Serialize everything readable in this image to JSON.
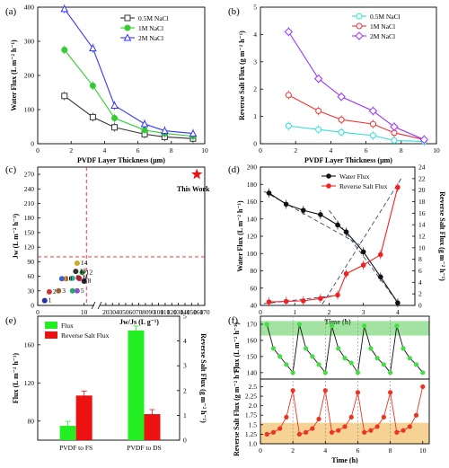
{
  "chart_data": [
    {
      "panel": "(a)",
      "type": "line",
      "xlabel": "PVDF Layer Thickness (μm)",
      "ylabel": "Water Flux (L m⁻² h⁻¹)",
      "xlim": [
        0,
        10
      ],
      "ylim": [
        0,
        400
      ],
      "xticks": [
        "0",
        "2",
        "4",
        "6",
        "8",
        "10"
      ],
      "yticks": [
        "0",
        "100",
        "200",
        "300",
        "400"
      ],
      "legend_position": "top-right",
      "series": [
        {
          "name": "0.5M NaCl",
          "color": "#333333",
          "marker": "square",
          "x": [
            1.6,
            3.3,
            4.6,
            6.4,
            7.6,
            9.3
          ],
          "y": [
            140,
            78,
            48,
            28,
            20,
            15
          ]
        },
        {
          "name": "1M NaCl",
          "color": "#33cc33",
          "marker": "circle",
          "x": [
            1.6,
            3.3,
            4.6,
            6.4,
            7.6,
            9.3
          ],
          "y": [
            275,
            170,
            75,
            40,
            30,
            22
          ]
        },
        {
          "name": "2M NaCl",
          "color": "#3333ff",
          "marker": "triangle",
          "x": [
            1.6,
            3.3,
            4.6,
            6.4,
            7.6,
            9.3
          ],
          "y": [
            395,
            280,
            112,
            58,
            38,
            30
          ]
        }
      ]
    },
    {
      "panel": "(b)",
      "type": "line",
      "xlabel": "PVDF Layer Thickness (μm)",
      "ylabel": "Reverse Salt Flux (g m⁻² h⁻¹)",
      "xlim": [
        0,
        10
      ],
      "ylim": [
        0,
        5
      ],
      "xticks": [
        "0",
        "2",
        "4",
        "6",
        "8",
        "10"
      ],
      "yticks": [
        "0",
        "1",
        "2",
        "3",
        "4",
        "5"
      ],
      "legend_position": "top-right",
      "series": [
        {
          "name": "0.5M NaCl",
          "color": "#33dddd",
          "marker": "circle",
          "x": [
            1.6,
            3.3,
            4.6,
            6.4,
            7.6,
            9.3
          ],
          "y": [
            0.65,
            0.52,
            0.42,
            0.3,
            0.12,
            0.08
          ]
        },
        {
          "name": "1M NaCl",
          "color": "#ee3333",
          "marker": "circle",
          "x": [
            1.6,
            3.3,
            4.6,
            6.4,
            7.6,
            9.3
          ],
          "y": [
            1.78,
            1.2,
            0.88,
            0.72,
            0.4,
            0.15
          ]
        },
        {
          "name": "2M NaCl",
          "color": "#9933ff",
          "marker": "diamond",
          "x": [
            1.6,
            3.3,
            4.6,
            6.4,
            7.6,
            9.3
          ],
          "y": [
            4.1,
            2.38,
            1.72,
            1.2,
            0.62,
            0.15
          ]
        }
      ]
    },
    {
      "panel": "(c)",
      "type": "scatter",
      "xlabel": "Jw/Js (L g⁻¹)",
      "ylabel": "Jw (L m⁻² h⁻¹)",
      "xlim": [
        0,
        170
      ],
      "ylim": [
        0,
        285
      ],
      "xticks": [
        "0",
        "10",
        "20",
        "30",
        "40",
        "50",
        "60",
        "70",
        "80",
        "90",
        "100",
        "110",
        "120",
        "130",
        "140",
        "150",
        "160",
        "170"
      ],
      "yticks": [
        "0",
        "30",
        "60",
        "90",
        "120",
        "150",
        "180",
        "210",
        "240",
        "270"
      ],
      "axis_break": true,
      "reference_lines": {
        "x": 10.5,
        "y": 100
      },
      "points": [
        {
          "label": "1",
          "x": 1.5,
          "y": 10,
          "color": "#2233aa"
        },
        {
          "label": "2",
          "x": 2.5,
          "y": 28,
          "color": "#cc3333"
        },
        {
          "label": "3",
          "x": 4.5,
          "y": 30,
          "color": "#996633"
        },
        {
          "label": "4",
          "x": 7.5,
          "y": 30,
          "color": "#22aa66"
        },
        {
          "label": "5",
          "x": 8.5,
          "y": 30,
          "color": "#8855cc"
        },
        {
          "label": "6",
          "x": 6,
          "y": 55,
          "color": "#ee8833"
        },
        {
          "label": "7",
          "x": 7.5,
          "y": 56,
          "color": "#33aa99"
        },
        {
          "label": "8",
          "x": 10,
          "y": 50,
          "color": "#222222"
        },
        {
          "label": "9",
          "x": 9,
          "y": 55,
          "color": "#cc33aa"
        },
        {
          "label": "10",
          "x": 5.2,
          "y": 55,
          "color": "#3366cc"
        },
        {
          "label": "11",
          "x": 8.8,
          "y": 57,
          "color": "#aa2222"
        },
        {
          "label": "12",
          "x": 9.6,
          "y": 68,
          "color": "#337733"
        },
        {
          "label": "13",
          "x": 8.2,
          "y": 70,
          "color": "#333333"
        },
        {
          "label": "14",
          "x": 8.5,
          "y": 87,
          "color": "#ccaa22"
        }
      ],
      "highlight": {
        "label": "This Work",
        "x": 158,
        "y": 270,
        "color": "#ee1111"
      }
    },
    {
      "panel": "(d)",
      "type": "line",
      "xlabel": "Time (h)",
      "ylabel": "Water Flux (L m⁻² h⁻¹)",
      "ylabel_right": "Reverse Salt Flux (g m⁻² h⁻¹)",
      "xlim": [
        0,
        4.5
      ],
      "ylim": [
        40,
        200
      ],
      "ylim_right": [
        0,
        24
      ],
      "xticks": [
        "0",
        "1",
        "2",
        "3",
        "4"
      ],
      "yticks": [
        "40",
        "60",
        "80",
        "100",
        "120",
        "140",
        "160",
        "180",
        "200"
      ],
      "yticks_right": [
        "0",
        "2",
        "4",
        "6",
        "8",
        "10",
        "12",
        "14",
        "16",
        "18",
        "20",
        "22",
        "24"
      ],
      "legend_position": "top-right",
      "series": [
        {
          "name": "Water Flux",
          "color": "#111111",
          "axis": "left",
          "x": [
            0.25,
            0.75,
            1.25,
            1.75,
            2.25,
            2.5,
            3.0,
            3.5,
            4.0
          ],
          "y": [
            170,
            157,
            150,
            145,
            133,
            125,
            102,
            73,
            43
          ]
        },
        {
          "name": "Reverse Salt Flux",
          "color": "#ee2222",
          "axis": "right",
          "x": [
            0.25,
            0.75,
            1.25,
            1.75,
            2.25,
            2.5,
            3.0,
            3.5,
            4.0
          ],
          "y": [
            0.6,
            0.7,
            0.8,
            1.2,
            1.8,
            5.5,
            7.0,
            8.8,
            20.5
          ]
        }
      ]
    },
    {
      "panel": "(e)",
      "type": "bar",
      "ylabel": "Flux (L m⁻² h⁻¹)",
      "ylabel_right": "Reverse Salt Flux (g m⁻² h⁻¹)",
      "categories": [
        "PVDF to FS",
        "PVDF to DS"
      ],
      "ylim": [
        60,
        190
      ],
      "ylim_right": [
        0,
        5
      ],
      "yticks": [
        "80",
        "120",
        "160"
      ],
      "yticks_right": [
        "0",
        "1",
        "2",
        "3",
        "4",
        "5"
      ],
      "legend_position": "top-left",
      "series": [
        {
          "name": "Flux",
          "color": "#22ee22",
          "axis": "left",
          "values": [
            75,
            175
          ]
        },
        {
          "name": "Reverse Salt Flux",
          "color": "#ee1111",
          "axis": "right",
          "values": [
            1.8,
            1.05
          ]
        }
      ]
    },
    {
      "panel": "(f)",
      "type": "line",
      "xlabel": "Time (h)",
      "ylabel_top": "Flux (L m⁻² h⁻¹)",
      "ylabel_bottom": "Reverse Salt Flux (g m⁻² h⁻¹)",
      "xlim": [
        0,
        10.4
      ],
      "ylim_top": [
        136,
        175
      ],
      "ylim_bottom": [
        1.0,
        2.7
      ],
      "xticks": [
        "0",
        "2",
        "4",
        "6",
        "8",
        "10"
      ],
      "yticks_top": [
        "140",
        "150",
        "160",
        "170"
      ],
      "yticks_bottom": [
        "1.0",
        "1.25",
        "1.5",
        "1.75",
        "2.0",
        "2.25",
        "2.5"
      ],
      "series": [
        {
          "name": "Flux",
          "color": "#44dd44",
          "x": [
            0.4,
            0.8,
            1.2,
            1.6,
            2.0,
            2.4,
            2.8,
            3.2,
            3.6,
            4.0,
            4.4,
            4.8,
            5.2,
            5.6,
            6.0,
            6.4,
            6.8,
            7.2,
            7.6,
            8.0,
            8.4,
            8.8,
            9.2,
            9.6,
            10.0
          ],
          "y": [
            170,
            155,
            150,
            145,
            140,
            170,
            155,
            150,
            145,
            140,
            169,
            155,
            149,
            146,
            140,
            169,
            155,
            149,
            145,
            140,
            169,
            155,
            149,
            145,
            140
          ]
        },
        {
          "name": "Reverse Salt Flux",
          "color": "#ee3322",
          "x": [
            0.4,
            0.8,
            1.2,
            1.6,
            2.0,
            2.4,
            2.8,
            3.2,
            3.6,
            4.0,
            4.4,
            4.8,
            5.2,
            5.6,
            6.0,
            6.4,
            6.8,
            7.2,
            7.6,
            8.0,
            8.4,
            8.8,
            9.2,
            9.6,
            10.0
          ],
          "y": [
            1.25,
            1.3,
            1.4,
            1.7,
            2.4,
            1.25,
            1.3,
            1.4,
            1.65,
            2.4,
            1.3,
            1.35,
            1.45,
            1.7,
            2.35,
            1.3,
            1.35,
            1.45,
            1.7,
            2.35,
            1.3,
            1.35,
            1.45,
            1.75,
            2.5
          ]
        }
      ]
    }
  ]
}
